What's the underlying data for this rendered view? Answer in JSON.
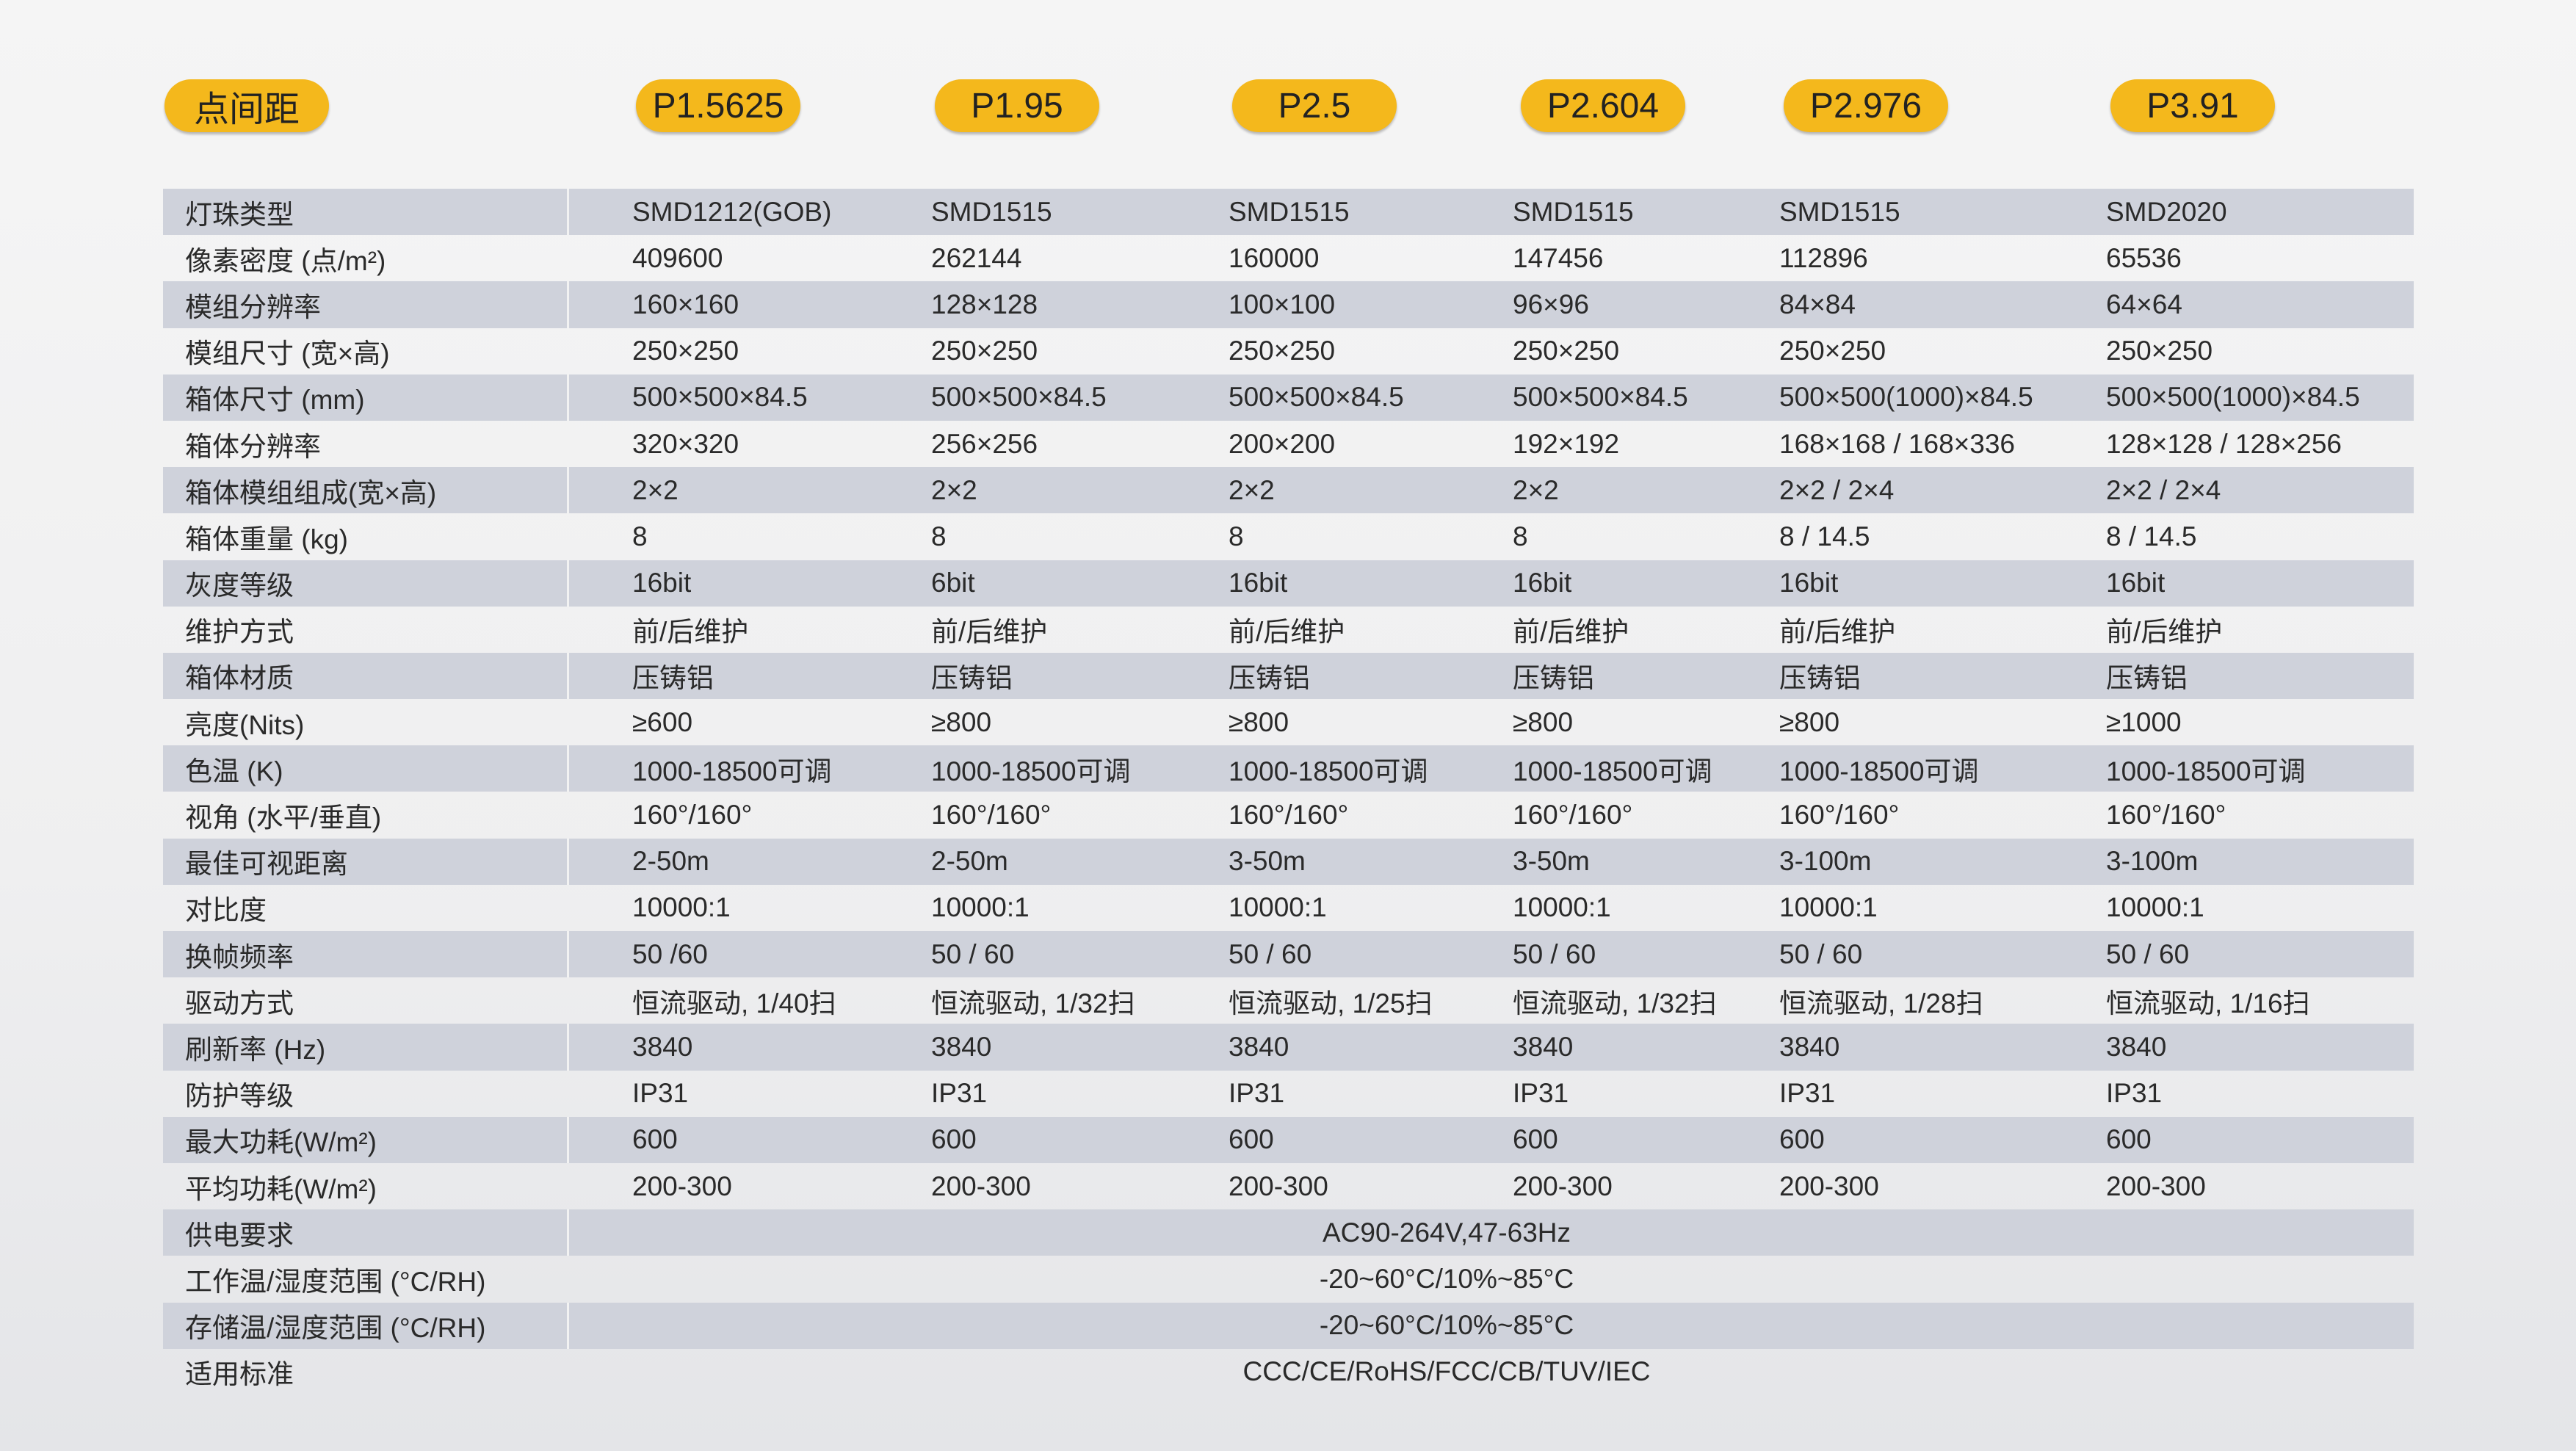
{
  "header": {
    "label": "点间距",
    "models": [
      "P1.5625",
      "P1.95",
      "P2.5",
      "P2.604",
      "P2.976",
      "P3.91"
    ]
  },
  "colors": {
    "pill": "#f4b81c",
    "row_shade": "#cfd2db"
  },
  "rows": [
    {
      "label": "灯珠类型",
      "values": [
        "SMD1212(GOB)",
        "SMD1515",
        "SMD1515",
        "SMD1515",
        "SMD1515",
        "SMD2020"
      ]
    },
    {
      "label": "像素密度 (点/m²)",
      "values": [
        "409600",
        "262144",
        "160000",
        "147456",
        "112896",
        "65536"
      ]
    },
    {
      "label": "模组分辨率",
      "values": [
        "160×160",
        "128×128",
        "100×100",
        "96×96",
        "84×84",
        "64×64"
      ]
    },
    {
      "label": "模组尺寸 (宽×高)",
      "values": [
        "250×250",
        "250×250",
        "250×250",
        "250×250",
        "250×250",
        "250×250"
      ]
    },
    {
      "label": "箱体尺寸 (mm)",
      "values": [
        "500×500×84.5",
        "500×500×84.5",
        "500×500×84.5",
        "500×500×84.5",
        "500×500(1000)×84.5",
        "500×500(1000)×84.5"
      ]
    },
    {
      "label": "箱体分辨率",
      "values": [
        "320×320",
        "256×256",
        "200×200",
        "192×192",
        "168×168 / 168×336",
        "128×128 / 128×256"
      ]
    },
    {
      "label": "箱体模组组成(宽×高)",
      "values": [
        "2×2",
        "2×2",
        "2×2",
        "2×2",
        "2×2 / 2×4",
        "2×2 / 2×4"
      ]
    },
    {
      "label": "箱体重量 (kg)",
      "values": [
        "8",
        "8",
        "8",
        "8",
        "8 / 14.5",
        "8 / 14.5"
      ]
    },
    {
      "label": "灰度等级",
      "values": [
        "16bit",
        "6bit",
        "16bit",
        "16bit",
        "16bit",
        "16bit"
      ]
    },
    {
      "label": "维护方式",
      "values": [
        "前/后维护",
        "前/后维护",
        "前/后维护",
        "前/后维护",
        "前/后维护",
        "前/后维护"
      ]
    },
    {
      "label": "箱体材质",
      "values": [
        "压铸铝",
        "压铸铝",
        "压铸铝",
        "压铸铝",
        "压铸铝",
        "压铸铝"
      ]
    },
    {
      "label": "亮度(Nits)",
      "values": [
        "≥600",
        "≥800",
        "≥800",
        "≥800",
        "≥800",
        "≥1000"
      ]
    },
    {
      "label": "色温 (K)",
      "values": [
        "1000-18500可调",
        "1000-18500可调",
        "1000-18500可调",
        "1000-18500可调",
        "1000-18500可调",
        "1000-18500可调"
      ]
    },
    {
      "label": "视角 (水平/垂直)",
      "values": [
        "160°/160°",
        "160°/160°",
        "160°/160°",
        "160°/160°",
        "160°/160°",
        "160°/160°"
      ]
    },
    {
      "label": "最佳可视距离",
      "values": [
        "2-50m",
        "2-50m",
        "3-50m",
        "3-50m",
        "3-100m",
        "3-100m"
      ]
    },
    {
      "label": "对比度",
      "values": [
        "10000:1",
        "10000:1",
        "10000:1",
        "10000:1",
        "10000:1",
        "10000:1"
      ]
    },
    {
      "label": "换帧频率",
      "values": [
        "50 /60",
        "50 / 60",
        "50 / 60",
        "50 / 60",
        "50 / 60",
        "50 / 60"
      ]
    },
    {
      "label": "驱动方式",
      "values": [
        "恒流驱动, 1/40扫",
        "恒流驱动, 1/32扫",
        "恒流驱动, 1/25扫",
        "恒流驱动, 1/32扫",
        "恒流驱动, 1/28扫",
        "恒流驱动, 1/16扫"
      ]
    },
    {
      "label": "刷新率 (Hz)",
      "values": [
        "3840",
        "3840",
        "3840",
        "3840",
        "3840",
        "3840"
      ]
    },
    {
      "label": "防护等级",
      "values": [
        "IP31",
        "IP31",
        "IP31",
        "IP31",
        "IP31",
        "IP31"
      ]
    },
    {
      "label": "最大功耗(W/m²)",
      "values": [
        "600",
        "600",
        "600",
        "600",
        "600",
        "600"
      ]
    },
    {
      "label": "平均功耗(W/m²)",
      "values": [
        "200-300",
        "200-300",
        "200-300",
        "200-300",
        "200-300",
        "200-300"
      ]
    },
    {
      "label": "供电要求",
      "merged": "AC90-264V,47-63Hz"
    },
    {
      "label": "工作温/湿度范围 (°C/RH)",
      "merged": "-20~60°C/10%~85°C"
    },
    {
      "label": "存储温/湿度范围 (°C/RH)",
      "merged": "-20~60°C/10%~85°C"
    },
    {
      "label": "适用标准",
      "merged": "CCC/CE/RoHS/FCC/CB/TUV/IEC"
    }
  ]
}
